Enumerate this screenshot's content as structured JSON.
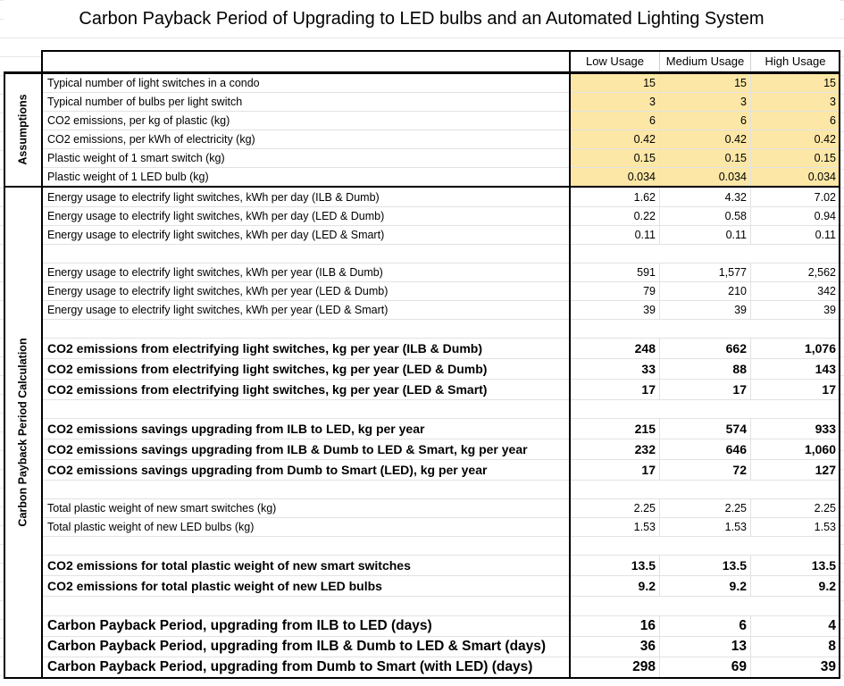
{
  "title": "Carbon Payback Period of Upgrading to LED bulbs and an Automated Lighting System",
  "columns": [
    "Low Usage",
    "Medium Usage",
    "High Usage"
  ],
  "sections": [
    {
      "label": "Assumptions",
      "groups": [
        {
          "rows": [
            {
              "label": "Typical number of light switches in a condo",
              "values": [
                15,
                15,
                15
              ]
            },
            {
              "label": "Typical number of bulbs per light switch",
              "values": [
                3,
                3,
                3
              ]
            },
            {
              "label": "CO2 emissions, per kg of plastic (kg)",
              "values": [
                6,
                6,
                6
              ]
            },
            {
              "label": "CO2 emissions, per kWh of electricity (kg)",
              "values": [
                0.42,
                0.42,
                0.42
              ]
            },
            {
              "label": "Plastic weight of 1 smart switch (kg)",
              "values": [
                0.15,
                0.15,
                0.15
              ]
            },
            {
              "label": "Plastic weight of 1 LED bulb (kg)",
              "values": [
                0.034,
                0.034,
                0.034
              ]
            }
          ]
        }
      ]
    },
    {
      "label": "Carbon Payback Period Calculation",
      "groups": [
        {
          "rows": [
            {
              "label": "Energy usage to electrify light switches, kWh per day (ILB & Dumb)",
              "values": [
                1.62,
                4.32,
                7.02
              ]
            },
            {
              "label": "Energy usage to electrify light switches, kWh per day (LED & Dumb)",
              "values": [
                0.22,
                0.58,
                0.94
              ]
            },
            {
              "label": "Energy usage to electrify light switches, kWh per day (LED & Smart)",
              "values": [
                0.11,
                0.11,
                0.11
              ]
            }
          ]
        },
        {
          "rows": [
            {
              "label": "Energy usage to electrify light switches, kWh per year (ILB & Dumb)",
              "values": [
                591,
                "1,577",
                "2,562"
              ]
            },
            {
              "label": "Energy usage to electrify light switches, kWh per year (LED & Dumb)",
              "values": [
                79,
                210,
                342
              ]
            },
            {
              "label": "Energy usage to electrify light switches, kWh per year (LED & Smart)",
              "values": [
                39,
                39,
                39
              ]
            }
          ]
        },
        {
          "rows": [
            {
              "label": "CO2 emissions from electrifying light switches, kg per year (ILB & Dumb)",
              "values": [
                248,
                662,
                "1,076"
              ]
            },
            {
              "label": "CO2 emissions from electrifying light switches, kg per year (LED & Dumb)",
              "values": [
                33,
                88,
                143
              ]
            },
            {
              "label": "CO2 emissions from electrifying light switches, kg per year (LED & Smart)",
              "values": [
                17,
                17,
                17
              ]
            }
          ]
        },
        {
          "rows": [
            {
              "label": "CO2 emissions savings upgrading from ILB to LED, kg per year",
              "values": [
                215,
                574,
                933
              ]
            },
            {
              "label": "CO2 emissions savings upgrading from ILB & Dumb to LED & Smart, kg per year",
              "values": [
                232,
                646,
                "1,060"
              ]
            },
            {
              "label": "CO2 emissions savings upgrading from Dumb to Smart (LED), kg per year",
              "values": [
                17,
                72,
                127
              ]
            }
          ]
        },
        {
          "rows": [
            {
              "label": "Total plastic weight of new smart switches (kg)",
              "values": [
                2.25,
                2.25,
                2.25
              ]
            },
            {
              "label": "Total plastic weight of new LED bulbs (kg)",
              "values": [
                1.53,
                1.53,
                1.53
              ]
            }
          ]
        },
        {
          "rows": [
            {
              "label": "CO2 emissions for total plastic weight of new smart switches",
              "values": [
                13.5,
                13.5,
                13.5
              ]
            },
            {
              "label": "CO2 emissions for total plastic weight of new LED bulbs",
              "values": [
                9.2,
                9.2,
                9.2
              ]
            }
          ]
        },
        {
          "rows": [
            {
              "label": "Carbon Payback Period, upgrading from ILB to LED (days)",
              "values": [
                16,
                6,
                4
              ]
            },
            {
              "label": "Carbon Payback Period, upgrading from ILB & Dumb to LED & Smart (days)",
              "values": [
                36,
                13,
                8
              ]
            },
            {
              "label": "Carbon Payback Period, upgrading from Dumb to Smart (with LED) (days)",
              "values": [
                298,
                69,
                39
              ]
            }
          ]
        }
      ]
    }
  ]
}
